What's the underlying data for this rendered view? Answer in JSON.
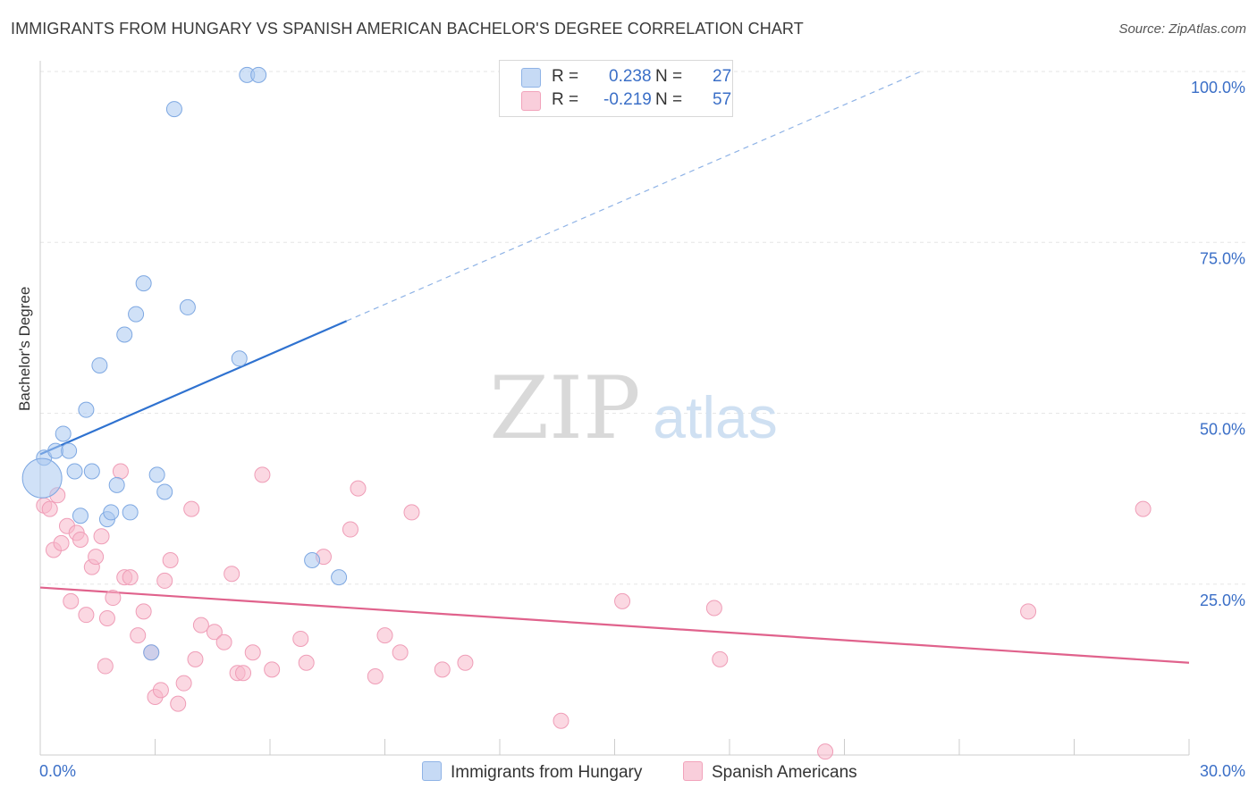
{
  "header": {
    "title": "IMMIGRANTS FROM HUNGARY VS SPANISH AMERICAN BACHELOR'S DEGREE CORRELATION CHART",
    "source": "Source: ZipAtlas.com"
  },
  "watermark": {
    "zip": "ZIP",
    "atlas": "atlas"
  },
  "legend": {
    "rows": [
      {
        "r_label": "R =",
        "r_value": "0.238",
        "n_label": "N =",
        "n_value": "27",
        "color": "#aac8f0"
      },
      {
        "r_label": "R =",
        "r_value": "-0.219",
        "n_label": "N =",
        "n_value": "57",
        "color": "#f7b8cb"
      }
    ]
  },
  "bottom_legend": [
    {
      "label": "Immigrants from Hungary",
      "color": "#aac8f0"
    },
    {
      "label": "Spanish Americans",
      "color": "#f7b8cb"
    }
  ],
  "chart_data": {
    "type": "scatter",
    "title": "IMMIGRANTS FROM HUNGARY VS SPANISH AMERICAN BACHELOR'S DEGREE CORRELATION CHART",
    "xlabel": "",
    "ylabel": "Bachelor's Degree",
    "xlim": [
      0,
      30
    ],
    "ylim": [
      0,
      100
    ],
    "x_tick_labels": [
      "0.0%",
      "30.0%"
    ],
    "y_tick_labels": [
      "25.0%",
      "50.0%",
      "75.0%",
      "100.0%"
    ],
    "y_ticks": [
      25,
      50,
      75,
      100
    ],
    "grid": true,
    "series": [
      {
        "name": "Immigrants from Hungary",
        "color": "#6a9ee0",
        "fill": "#aac8f0",
        "points": [
          [
            0.1,
            43.5
          ],
          [
            0.4,
            44.5
          ],
          [
            0.6,
            47.0
          ],
          [
            0.75,
            44.5
          ],
          [
            0.9,
            41.5
          ],
          [
            1.05,
            35.0
          ],
          [
            1.2,
            50.5
          ],
          [
            1.35,
            41.5
          ],
          [
            1.55,
            57.0
          ],
          [
            1.75,
            34.5
          ],
          [
            1.85,
            35.5
          ],
          [
            2.0,
            39.5
          ],
          [
            2.2,
            61.5
          ],
          [
            2.35,
            35.5
          ],
          [
            2.5,
            64.5
          ],
          [
            2.7,
            69.0
          ],
          [
            2.9,
            15.0
          ],
          [
            3.05,
            41.0
          ],
          [
            3.25,
            38.5
          ],
          [
            3.5,
            94.5
          ],
          [
            3.85,
            65.5
          ],
          [
            5.2,
            58.0
          ],
          [
            5.4,
            99.5
          ],
          [
            5.7,
            99.5
          ],
          [
            7.1,
            28.5
          ],
          [
            7.8,
            26.0
          ],
          [
            0.05,
            40.5
          ]
        ],
        "trend": {
          "x": [
            0,
            8.0
          ],
          "y": [
            44.0,
            63.5
          ],
          "dashed_to": [
            23.0,
            100.0
          ]
        }
      },
      {
        "name": "Spanish Americans",
        "color": "#e86a92",
        "fill": "#f7b8cb",
        "points": [
          [
            0.1,
            36.5
          ],
          [
            0.25,
            36.0
          ],
          [
            0.35,
            30.0
          ],
          [
            0.45,
            38.0
          ],
          [
            0.55,
            31.0
          ],
          [
            0.7,
            33.5
          ],
          [
            0.8,
            22.5
          ],
          [
            0.95,
            32.5
          ],
          [
            1.05,
            31.5
          ],
          [
            1.2,
            20.5
          ],
          [
            1.35,
            27.5
          ],
          [
            1.45,
            29.0
          ],
          [
            1.6,
            32.0
          ],
          [
            1.7,
            13.0
          ],
          [
            1.75,
            20.0
          ],
          [
            1.9,
            23.0
          ],
          [
            2.1,
            41.5
          ],
          [
            2.2,
            26.0
          ],
          [
            2.35,
            26.0
          ],
          [
            2.55,
            17.5
          ],
          [
            2.7,
            21.0
          ],
          [
            2.9,
            15.0
          ],
          [
            3.0,
            8.5
          ],
          [
            3.15,
            9.5
          ],
          [
            3.25,
            25.5
          ],
          [
            3.4,
            28.5
          ],
          [
            3.6,
            7.5
          ],
          [
            3.75,
            10.5
          ],
          [
            3.95,
            36.0
          ],
          [
            4.05,
            14.0
          ],
          [
            4.2,
            19.0
          ],
          [
            4.55,
            18.0
          ],
          [
            4.8,
            16.5
          ],
          [
            5.0,
            26.5
          ],
          [
            5.15,
            12.0
          ],
          [
            5.3,
            12.0
          ],
          [
            5.55,
            15.0
          ],
          [
            5.8,
            41.0
          ],
          [
            6.05,
            12.5
          ],
          [
            6.8,
            17.0
          ],
          [
            6.95,
            13.5
          ],
          [
            7.4,
            29.0
          ],
          [
            8.1,
            33.0
          ],
          [
            8.3,
            39.0
          ],
          [
            8.75,
            11.5
          ],
          [
            9.0,
            17.5
          ],
          [
            9.4,
            15.0
          ],
          [
            9.7,
            35.5
          ],
          [
            10.5,
            12.5
          ],
          [
            11.1,
            13.5
          ],
          [
            13.6,
            5.0
          ],
          [
            15.2,
            22.5
          ],
          [
            17.6,
            21.5
          ],
          [
            17.75,
            14.0
          ],
          [
            20.5,
            0.5
          ],
          [
            25.8,
            21.0
          ],
          [
            28.8,
            36.0
          ]
        ],
        "trend": {
          "x": [
            0,
            30
          ],
          "y": [
            24.5,
            13.5
          ]
        }
      }
    ]
  }
}
